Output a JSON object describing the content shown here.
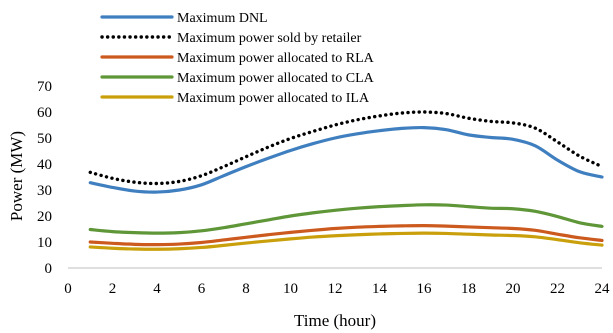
{
  "chart_data": {
    "type": "line",
    "xlabel": "Time (hour)",
    "ylabel": "Power (MW)",
    "xlim": [
      0,
      24
    ],
    "ylim": [
      0,
      70
    ],
    "xticks": [
      "0",
      "2",
      "4",
      "6",
      "8",
      "10",
      "12",
      "14",
      "16",
      "18",
      "20",
      "22",
      "24"
    ],
    "yticks": [
      "0",
      "10",
      "20",
      "30",
      "40",
      "50",
      "60",
      "70"
    ],
    "grid": false,
    "legend_position": "top-left",
    "x": [
      1,
      2,
      3,
      4,
      5,
      6,
      7,
      8,
      9,
      10,
      11,
      12,
      13,
      14,
      15,
      16,
      17,
      18,
      19,
      20,
      21,
      22,
      23,
      24
    ],
    "series": [
      {
        "name": "Maximum DNL",
        "color": "#3F7FBF",
        "style": "solid",
        "values": [
          32.8,
          31.0,
          29.6,
          29.2,
          30.0,
          32.0,
          35.5,
          39.0,
          42.2,
          45.2,
          47.8,
          50.0,
          51.6,
          52.8,
          53.7,
          54.0,
          53.2,
          51.2,
          50.2,
          49.5,
          47.0,
          41.5,
          37.0,
          35.0
        ]
      },
      {
        "name": "Maximum power sold by retailer",
        "color": "#000000",
        "style": "dotted",
        "values": [
          36.8,
          34.5,
          33.0,
          32.5,
          33.3,
          35.5,
          39.0,
          42.8,
          46.5,
          49.8,
          52.5,
          55.0,
          57.0,
          58.5,
          59.6,
          60.0,
          59.4,
          57.6,
          56.4,
          55.8,
          53.8,
          48.5,
          43.0,
          39.0
        ]
      },
      {
        "name": "Maximum power allocated to RLA",
        "color": "#CC5A1E",
        "style": "solid",
        "values": [
          10.0,
          9.5,
          9.1,
          9.0,
          9.2,
          9.8,
          10.8,
          11.8,
          12.8,
          13.7,
          14.5,
          15.2,
          15.7,
          16.0,
          16.2,
          16.3,
          16.1,
          15.8,
          15.5,
          15.2,
          14.5,
          13.0,
          11.6,
          10.6
        ]
      },
      {
        "name": "Maximum power allocated to CLA",
        "color": "#5E9638",
        "style": "solid",
        "values": [
          14.8,
          14.0,
          13.6,
          13.4,
          13.6,
          14.3,
          15.5,
          17.0,
          18.5,
          20.0,
          21.2,
          22.2,
          23.0,
          23.6,
          24.0,
          24.3,
          24.2,
          23.6,
          23.0,
          22.8,
          21.8,
          19.8,
          17.4,
          16.0
        ]
      },
      {
        "name": "Maximum power allocated to ILA",
        "color": "#C9A00C",
        "style": "solid",
        "values": [
          8.1,
          7.6,
          7.3,
          7.2,
          7.4,
          7.9,
          8.7,
          9.6,
          10.4,
          11.2,
          11.9,
          12.4,
          12.8,
          13.1,
          13.3,
          13.4,
          13.3,
          13.0,
          12.7,
          12.5,
          12.0,
          10.9,
          9.7,
          8.8
        ]
      }
    ]
  }
}
